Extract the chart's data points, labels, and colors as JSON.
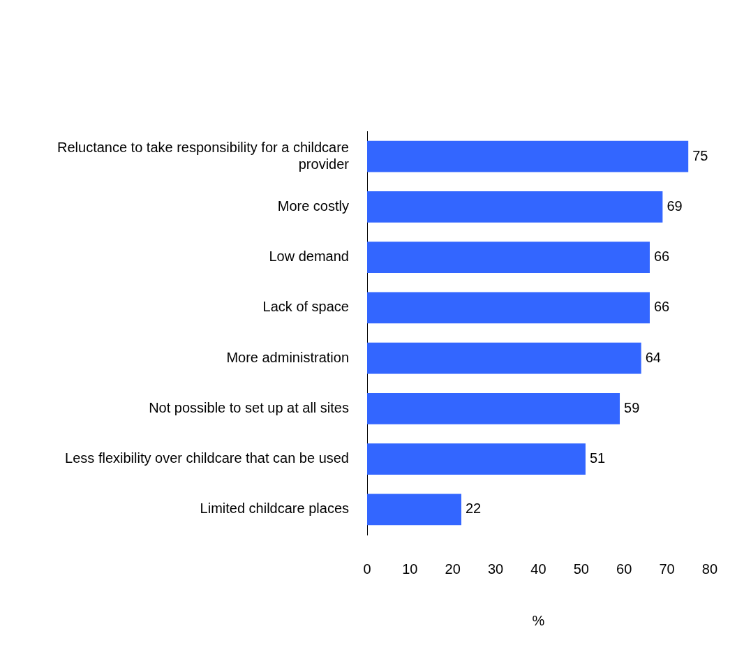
{
  "chart_data": {
    "type": "bar",
    "orientation": "horizontal",
    "xlabel": "%",
    "categories": [
      "Reluctance to take responsibility for a childcare provider",
      "More costly",
      "Low demand",
      "Lack of space",
      "More administration",
      "Not possible to set up at all sites",
      "Less flexibility over childcare that can be used",
      "Limited childcare places"
    ],
    "values": [
      75,
      69,
      66,
      66,
      64,
      59,
      51,
      22
    ],
    "color": "#3366ff",
    "xlim": [
      0,
      80
    ],
    "xticks": [
      0,
      10,
      20,
      30,
      40,
      50,
      60,
      70,
      80
    ],
    "grid": false,
    "legend": false,
    "data_labels": true
  }
}
